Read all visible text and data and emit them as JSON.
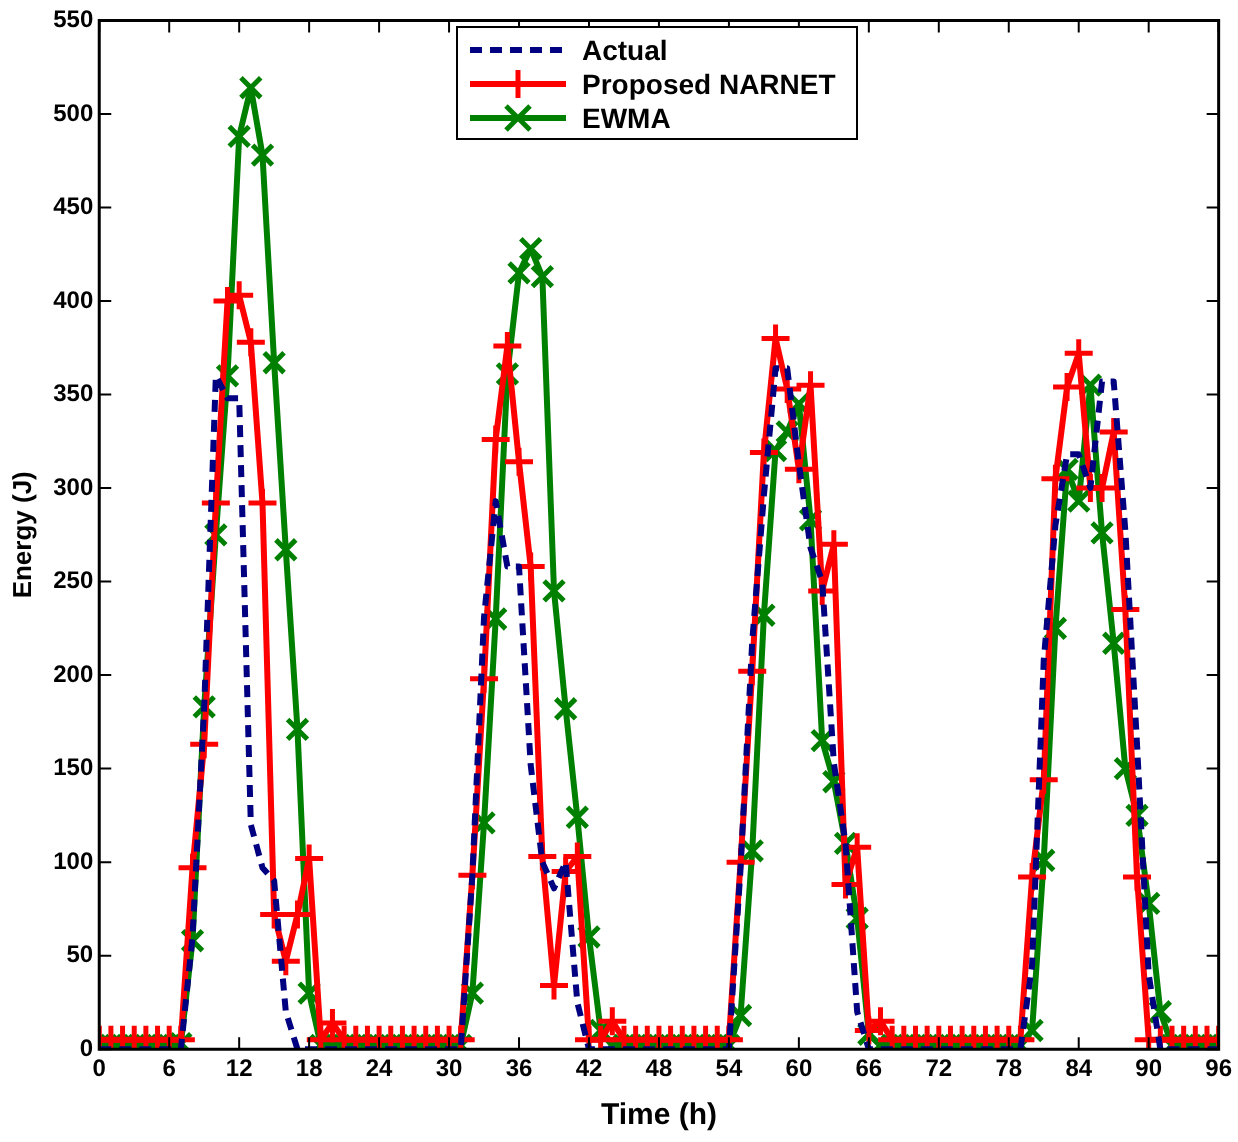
{
  "chart_data": {
    "type": "line",
    "xlabel": "Time (h)",
    "ylabel": "Energy (J)",
    "x": [
      0,
      1,
      2,
      3,
      4,
      5,
      6,
      7,
      8,
      9,
      10,
      11,
      12,
      13,
      14,
      15,
      16,
      17,
      18,
      19,
      20,
      21,
      22,
      23,
      24,
      25,
      26,
      27,
      28,
      29,
      30,
      31,
      32,
      33,
      34,
      35,
      36,
      37,
      38,
      39,
      40,
      41,
      42,
      43,
      44,
      45,
      46,
      47,
      48,
      49,
      50,
      51,
      52,
      53,
      54,
      55,
      56,
      57,
      58,
      59,
      60,
      61,
      62,
      63,
      64,
      65,
      66,
      67,
      68,
      69,
      70,
      71,
      72,
      73,
      74,
      75,
      76,
      77,
      78,
      79,
      80,
      81,
      82,
      83,
      84,
      85,
      86,
      87,
      88,
      89,
      90,
      91,
      92,
      93,
      94,
      95,
      96
    ],
    "series": [
      {
        "name": "Actual",
        "color": "#000080",
        "line_style": "dashed",
        "marker": "none",
        "values": [
          0,
          0,
          0,
          0,
          0,
          0,
          0,
          0,
          60,
          183,
          360,
          348,
          348,
          120,
          97,
          90,
          20,
          0,
          0,
          0,
          0,
          0,
          0,
          0,
          0,
          0,
          0,
          0,
          0,
          0,
          0,
          0,
          93,
          231,
          293,
          258,
          258,
          152,
          100,
          86,
          100,
          25,
          0,
          0,
          0,
          0,
          0,
          0,
          0,
          0,
          0,
          0,
          0,
          0,
          0,
          97,
          218,
          296,
          364,
          364,
          313,
          268,
          250,
          153,
          110,
          20,
          0,
          0,
          0,
          0,
          0,
          0,
          0,
          0,
          0,
          0,
          0,
          0,
          0,
          0,
          45,
          208,
          280,
          318,
          318,
          300,
          357,
          357,
          277,
          163,
          40,
          0,
          0,
          0,
          0,
          0,
          0
        ]
      },
      {
        "name": "Proposed NARNET",
        "color": "#ff0000",
        "line_style": "solid",
        "marker": "cross",
        "values": [
          5,
          5,
          5,
          5,
          5,
          5,
          5,
          5,
          97,
          163,
          292,
          400,
          403,
          378,
          292,
          72,
          47,
          72,
          102,
          5,
          14,
          5,
          5,
          5,
          5,
          5,
          5,
          5,
          5,
          5,
          5,
          5,
          93,
          198,
          326,
          376,
          314,
          258,
          103,
          34,
          95,
          103,
          5,
          5,
          15,
          5,
          5,
          5,
          5,
          5,
          5,
          5,
          5,
          5,
          5,
          100,
          202,
          319,
          380,
          353,
          310,
          355,
          245,
          270,
          88,
          108,
          10,
          15,
          5,
          5,
          5,
          5,
          5,
          5,
          5,
          5,
          5,
          5,
          5,
          5,
          92,
          144,
          305,
          354,
          372,
          300,
          300,
          330,
          235,
          92,
          5,
          5,
          5,
          5,
          5,
          5,
          5
        ]
      },
      {
        "name": "EWMA",
        "color": "#008000",
        "line_style": "solid",
        "marker": "x",
        "values": [
          2,
          2,
          2,
          2,
          2,
          2,
          2,
          3,
          58,
          183,
          275,
          360,
          488,
          514,
          478,
          367,
          267,
          171,
          30,
          2,
          2,
          2,
          2,
          2,
          2,
          2,
          2,
          2,
          2,
          2,
          2,
          2,
          30,
          121,
          230,
          361,
          415,
          428,
          413,
          245,
          182,
          124,
          60,
          10,
          2,
          2,
          2,
          2,
          2,
          2,
          2,
          2,
          2,
          2,
          2,
          18,
          106,
          232,
          320,
          330,
          345,
          283,
          165,
          143,
          110,
          70,
          8,
          2,
          2,
          2,
          2,
          2,
          2,
          2,
          2,
          2,
          2,
          2,
          2,
          2,
          10,
          101,
          225,
          310,
          293,
          355,
          276,
          217,
          150,
          125,
          78,
          20,
          2,
          2,
          2,
          2,
          2
        ]
      }
    ],
    "xlim": [
      0,
      96
    ],
    "xticks": [
      0,
      6,
      12,
      18,
      24,
      30,
      36,
      42,
      48,
      54,
      60,
      66,
      72,
      78,
      84,
      90,
      96
    ],
    "ylim": [
      0,
      550
    ],
    "yticks": [
      0,
      50,
      100,
      150,
      200,
      250,
      300,
      350,
      400,
      450,
      500,
      550
    ],
    "grid": false,
    "legend": "top"
  }
}
